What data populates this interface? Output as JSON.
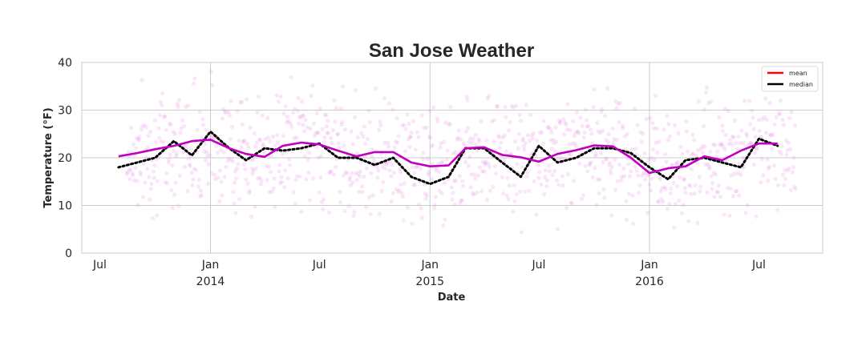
{
  "chart_data": {
    "type": "line",
    "title": "San Jose Weather",
    "xlabel": "Date",
    "ylabel": "Temperature (°F)",
    "ylim": [
      0,
      40
    ],
    "xlim": [
      "2013-06-01",
      "2016-10-15"
    ],
    "yticks": [
      0,
      10,
      20,
      30,
      40
    ],
    "xticks": [
      {
        "date": "2013-07-01",
        "label": "Jul",
        "sublabel": ""
      },
      {
        "date": "2014-01-01",
        "label": "Jan",
        "sublabel": "2014"
      },
      {
        "date": "2014-07-01",
        "label": "Jul",
        "sublabel": ""
      },
      {
        "date": "2015-01-01",
        "label": "Jan",
        "sublabel": "2015"
      },
      {
        "date": "2015-07-01",
        "label": "Jul",
        "sublabel": ""
      },
      {
        "date": "2016-01-01",
        "label": "Jan",
        "sublabel": "2016"
      },
      {
        "date": "2016-07-01",
        "label": "Jul",
        "sublabel": ""
      }
    ],
    "grid": true,
    "legend_position": "top-right",
    "legend": [
      {
        "name": "mean",
        "color": "#ff0000"
      },
      {
        "name": "median",
        "color": "#000000"
      }
    ],
    "series": [
      {
        "name": "mean",
        "color": "#bf00bf",
        "style": "solid",
        "x": [
          "2013-08-01",
          "2013-09-01",
          "2013-10-01",
          "2013-11-01",
          "2013-12-01",
          "2014-01-01",
          "2014-02-01",
          "2014-03-01",
          "2014-04-01",
          "2014-05-01",
          "2014-06-01",
          "2014-07-01",
          "2014-08-01",
          "2014-09-01",
          "2014-10-01",
          "2014-11-01",
          "2014-12-01",
          "2015-01-01",
          "2015-02-01",
          "2015-03-01",
          "2015-04-01",
          "2015-05-01",
          "2015-06-01",
          "2015-07-01",
          "2015-08-01",
          "2015-09-01",
          "2015-10-01",
          "2015-11-01",
          "2015-12-01",
          "2016-01-01",
          "2016-02-01",
          "2016-03-01",
          "2016-04-01",
          "2016-05-01",
          "2016-06-01",
          "2016-07-01",
          "2016-08-01"
        ],
        "values": [
          20.3,
          21.0,
          21.8,
          22.5,
          23.5,
          23.8,
          22.0,
          20.8,
          20.2,
          22.5,
          23.2,
          22.8,
          21.5,
          20.3,
          21.2,
          21.2,
          19.0,
          18.2,
          18.4,
          22.0,
          22.2,
          20.6,
          20.1,
          19.2,
          20.8,
          21.6,
          22.6,
          22.4,
          20.0,
          16.8,
          17.8,
          18.2,
          20.3,
          19.5,
          21.5,
          23.0,
          23.0
        ]
      },
      {
        "name": "median",
        "color": "#000000",
        "style": "dotted",
        "x": [
          "2013-08-01",
          "2013-09-01",
          "2013-10-01",
          "2013-11-01",
          "2013-12-01",
          "2014-01-01",
          "2014-02-01",
          "2014-03-01",
          "2014-04-01",
          "2014-05-01",
          "2014-06-01",
          "2014-07-01",
          "2014-08-01",
          "2014-09-01",
          "2014-10-01",
          "2014-11-01",
          "2014-12-01",
          "2015-01-01",
          "2015-02-01",
          "2015-03-01",
          "2015-04-01",
          "2015-05-01",
          "2015-06-01",
          "2015-07-01",
          "2015-08-01",
          "2015-09-01",
          "2015-10-01",
          "2015-11-01",
          "2015-12-01",
          "2016-01-01",
          "2016-02-01",
          "2016-03-01",
          "2016-04-01",
          "2016-05-01",
          "2016-06-01",
          "2016-07-01",
          "2016-08-01"
        ],
        "values": [
          18.0,
          19.0,
          20.0,
          23.5,
          20.5,
          25.5,
          22.0,
          19.5,
          22.0,
          21.5,
          22.0,
          23.0,
          20.0,
          20.0,
          18.5,
          20.0,
          16.0,
          14.5,
          16.0,
          22.0,
          22.0,
          19.0,
          16.0,
          22.5,
          19.0,
          20.0,
          22.0,
          22.0,
          21.0,
          18.0,
          15.5,
          19.5,
          20.0,
          19.0,
          18.0,
          24.0,
          22.5
        ]
      }
    ]
  }
}
